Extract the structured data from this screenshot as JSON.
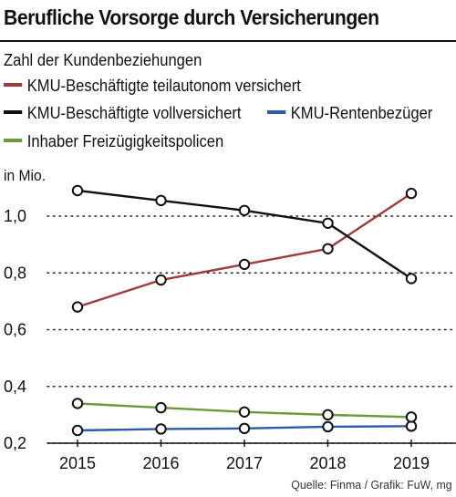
{
  "header": {
    "title": "Berufliche Vorsorge durch Versicherungen",
    "subtitle": "Zahl der Kundenbeziehungen"
  },
  "footer": {
    "source": "Quelle: Finma / Grafik: FuW, mg"
  },
  "chart_data": {
    "type": "line",
    "title": "Berufliche Vorsorge durch Versicherungen",
    "subtitle": "Zahl der Kundenbeziehungen",
    "unit_label": "in Mio.",
    "x": [
      "2015",
      "2016",
      "2017",
      "2018",
      "2019"
    ],
    "y_ticks": [
      "1,0",
      "0,8",
      "0,6",
      "0,4",
      "0,2"
    ],
    "y_tick_values": [
      1.0,
      0.8,
      0.6,
      0.4,
      0.2
    ],
    "ylim": [
      0.2,
      1.15
    ],
    "grid": "horizontal-dotted",
    "legend_position": "top",
    "series": [
      {
        "name": "KMU-Beschäftigte teilautonom versichert",
        "color": "#a33a3a",
        "marker": "open-circle",
        "values": [
          0.68,
          0.775,
          0.83,
          0.885,
          1.08
        ]
      },
      {
        "name": "KMU-Beschäftigte vollversichert",
        "color": "#111111",
        "marker": "open-circle",
        "values": [
          1.09,
          1.055,
          1.02,
          0.975,
          0.78
        ]
      },
      {
        "name": "KMU-Rentenbezüger",
        "color": "#2f5aa8",
        "marker": "open-circle",
        "values": [
          0.245,
          0.25,
          0.252,
          0.258,
          0.26
        ]
      },
      {
        "name": "Inhaber Freizügigkeitspolicen",
        "color": "#6a9a3a",
        "marker": "open-circle",
        "values": [
          0.34,
          0.325,
          0.31,
          0.3,
          0.292
        ]
      }
    ]
  }
}
